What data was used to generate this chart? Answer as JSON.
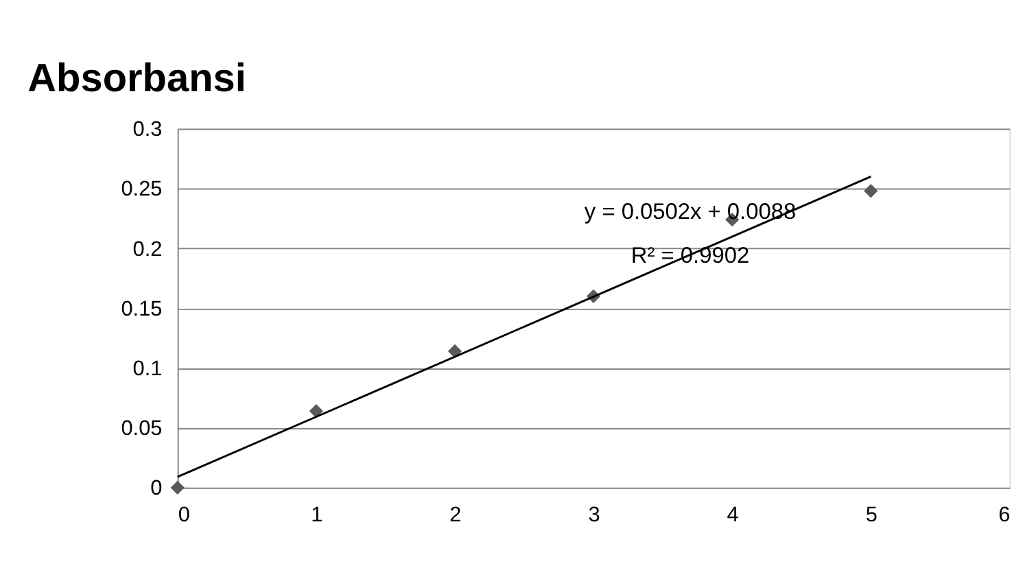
{
  "chart_data": {
    "type": "scatter",
    "title": "Absorbansi",
    "x": [
      0,
      1,
      2,
      3,
      4,
      5
    ],
    "series": [
      {
        "color": "#595959",
        "marker": "diamond",
        "values": [
          0,
          0.064,
          0.114,
          0.16,
          0.224,
          0.248
        ]
      },
      {
        "type": "line",
        "color": "#000000",
        "x": [
          0,
          5
        ],
        "values": [
          0.009,
          0.26
        ]
      }
    ],
    "annotations": [
      "y = 0.0502x + 0.0088",
      "R² = 0.9902"
    ],
    "xlim": [
      0,
      6
    ],
    "xticks": [
      0,
      1,
      2,
      3,
      4,
      5,
      6
    ],
    "ylim": [
      0,
      0.3
    ],
    "yticks": [
      0,
      0.05,
      0.1,
      0.15,
      0.2,
      0.25,
      0.3
    ],
    "grid": "y",
    "line_style": "solid"
  }
}
